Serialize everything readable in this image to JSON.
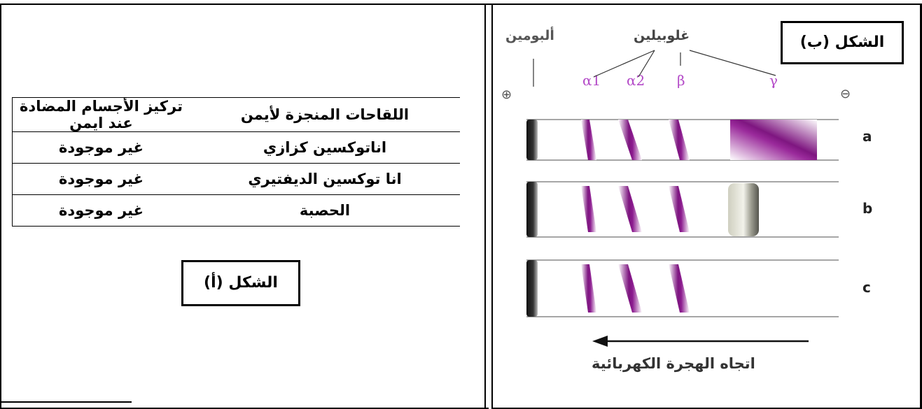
{
  "figure_a": {
    "caption": "الشكل (أ)",
    "table": {
      "headers": [
        "اللقاحات المنجزة لأيمن",
        "تركيز الأجسام المضادة عند ايمن"
      ],
      "rows": [
        [
          "اناتوكسين كزازي",
          "غير موجودة"
        ],
        [
          "انا توكسين الديفتيري",
          "غير موجودة"
        ],
        [
          "الحصبة",
          "غير موجودة"
        ]
      ]
    }
  },
  "figure_b": {
    "caption": "الشكل (ب)",
    "albumin_label": "ألبومين",
    "globulin_label": "غلوبيلين",
    "greek": {
      "a1": "α1",
      "a2": "α2",
      "beta": "β",
      "gamma": "γ"
    },
    "positive": "⊕",
    "negative": "⊖",
    "rows": [
      "a",
      "b",
      "c"
    ],
    "direction_caption": "اتجاه الهجرة الكهربائية",
    "colors": {
      "band": "#8b1a8e",
      "gamma_band": "#9a2a9b",
      "albumin_band": "#1a1a1a",
      "greek": "#b44bc8"
    }
  }
}
